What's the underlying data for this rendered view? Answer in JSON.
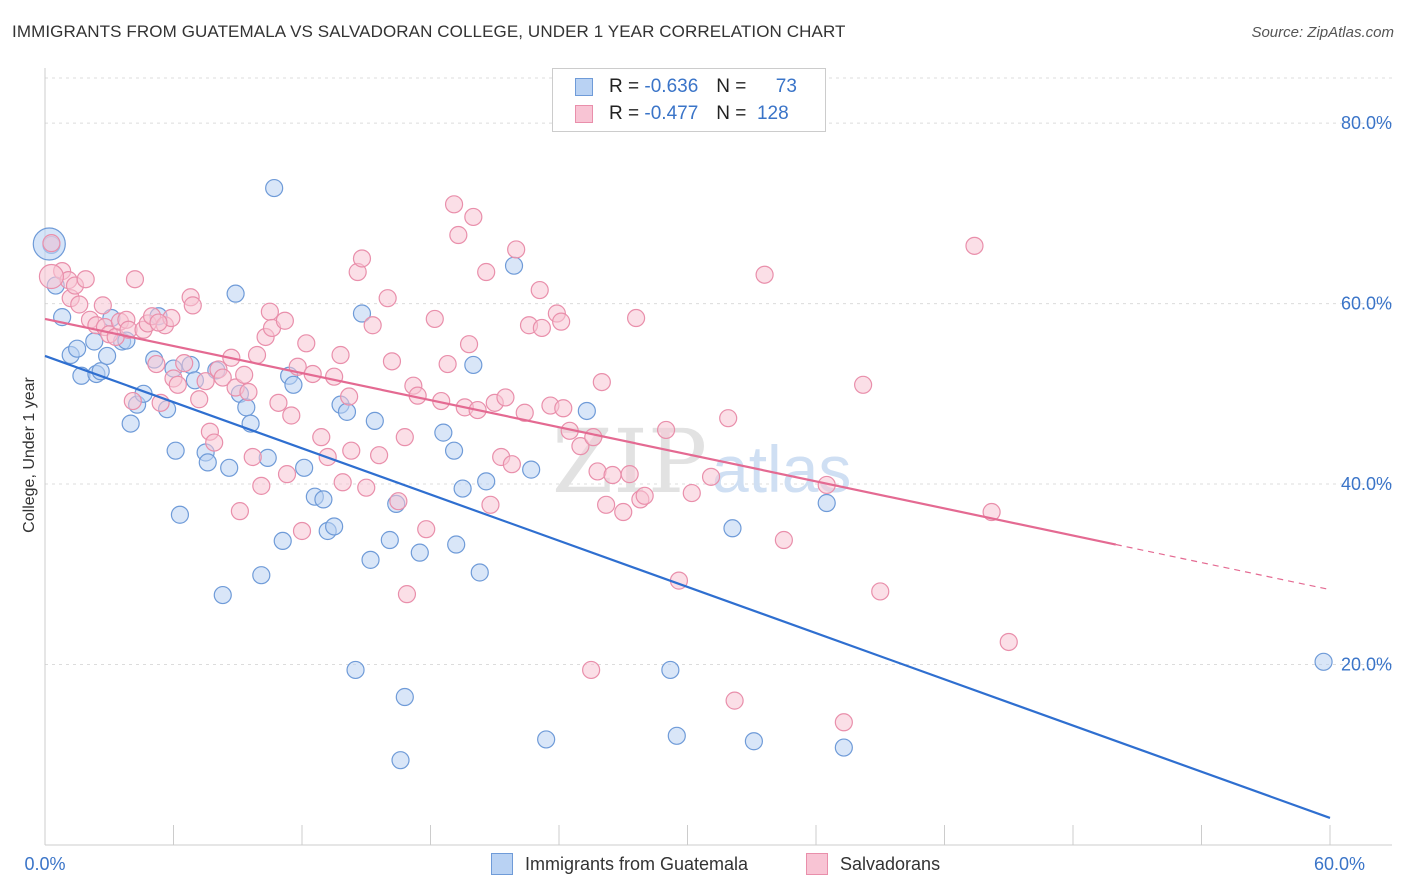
{
  "title": "IMMIGRANTS FROM GUATEMALA VS SALVADORAN COLLEGE, UNDER 1 YEAR CORRELATION CHART",
  "source": "Source: ZipAtlas.com",
  "watermark": {
    "zip": "ZIP",
    "atlas": "atlas"
  },
  "legend": {
    "r_label": "R =",
    "n_label": "N =",
    "rows": [
      {
        "r": "-0.636",
        "n": "73",
        "swatch_fill": "#b9d2f3",
        "swatch_stroke": "#6f9bd8"
      },
      {
        "r": "-0.477",
        "n": "128",
        "swatch_fill": "#f8c4d4",
        "swatch_stroke": "#e98fab"
      }
    ]
  },
  "bottom_legend": [
    {
      "label": "Immigrants from Guatemala",
      "fill": "#b9d2f3",
      "stroke": "#6f9bd8"
    },
    {
      "label": "Salvadorans",
      "fill": "#f8c4d4",
      "stroke": "#e98fab"
    }
  ],
  "chart_data": {
    "type": "scatter",
    "title": "IMMIGRANTS FROM GUATEMALA VS SALVADORAN COLLEGE, UNDER 1 YEAR CORRELATION CHART",
    "xlabel": "",
    "ylabel": "College, Under 1 year",
    "xlim": [
      0,
      60
    ],
    "ylim": [
      0,
      85
    ],
    "x_tick_labels": [
      {
        "value": 0,
        "label": "0.0%"
      },
      {
        "value": 60,
        "label": "60.0%"
      }
    ],
    "x_minor_ticks": [
      0,
      6,
      12,
      18,
      24,
      30,
      36,
      42,
      48,
      54,
      60
    ],
    "y_ticks": [
      {
        "value": 20,
        "label": "20.0%"
      },
      {
        "value": 40,
        "label": "40.0%"
      },
      {
        "value": 60,
        "label": "60.0%"
      },
      {
        "value": 80,
        "label": "80.0%"
      }
    ],
    "grid": true,
    "grid_style": "dashed-horizontal",
    "legend_position": "top-center",
    "series": [
      {
        "name": "Immigrants from Guatemala",
        "color": "#6f9bd8",
        "fill": "#b9d2f3",
        "trend_color": "#2f6fd0",
        "trend": {
          "x": [
            0,
            60
          ],
          "y": [
            54.2,
            3.0
          ]
        },
        "points": [
          [
            0.3,
            66.5
          ],
          [
            0.5,
            62.0
          ],
          [
            0.8,
            58.5
          ],
          [
            1.2,
            54.3
          ],
          [
            1.5,
            55.0
          ],
          [
            1.7,
            52.0
          ],
          [
            2.3,
            55.8
          ],
          [
            2.4,
            52.2
          ],
          [
            2.6,
            52.5
          ],
          [
            2.9,
            54.2
          ],
          [
            3.1,
            58.4
          ],
          [
            3.6,
            55.8
          ],
          [
            3.8,
            55.9
          ],
          [
            4.0,
            46.7
          ],
          [
            4.3,
            48.8
          ],
          [
            4.6,
            50.0
          ],
          [
            5.1,
            53.8
          ],
          [
            5.3,
            58.6
          ],
          [
            5.7,
            48.3
          ],
          [
            6.0,
            52.8
          ],
          [
            6.1,
            43.7
          ],
          [
            6.3,
            36.6
          ],
          [
            6.8,
            53.2
          ],
          [
            7.0,
            51.5
          ],
          [
            7.5,
            43.5
          ],
          [
            7.6,
            42.4
          ],
          [
            8.0,
            52.6
          ],
          [
            8.3,
            27.7
          ],
          [
            8.6,
            41.8
          ],
          [
            8.9,
            61.1
          ],
          [
            9.1,
            50.0
          ],
          [
            9.4,
            48.5
          ],
          [
            9.6,
            46.7
          ],
          [
            10.1,
            29.9
          ],
          [
            10.4,
            42.9
          ],
          [
            10.7,
            72.8
          ],
          [
            11.1,
            33.7
          ],
          [
            11.4,
            52.0
          ],
          [
            11.6,
            51.0
          ],
          [
            12.1,
            41.8
          ],
          [
            12.6,
            38.6
          ],
          [
            13.0,
            38.3
          ],
          [
            13.2,
            34.8
          ],
          [
            13.5,
            35.3
          ],
          [
            13.8,
            48.8
          ],
          [
            14.1,
            48.0
          ],
          [
            14.5,
            19.4
          ],
          [
            14.8,
            58.9
          ],
          [
            15.2,
            31.6
          ],
          [
            15.4,
            47.0
          ],
          [
            16.1,
            33.8
          ],
          [
            16.4,
            37.8
          ],
          [
            16.8,
            16.4
          ],
          [
            16.6,
            9.4
          ],
          [
            17.5,
            32.4
          ],
          [
            18.6,
            45.7
          ],
          [
            19.1,
            43.7
          ],
          [
            19.2,
            33.3
          ],
          [
            19.5,
            39.5
          ],
          [
            20.0,
            53.2
          ],
          [
            20.3,
            30.2
          ],
          [
            20.6,
            40.3
          ],
          [
            21.9,
            64.2
          ],
          [
            22.7,
            41.6
          ],
          [
            23.4,
            11.7
          ],
          [
            25.3,
            48.1
          ],
          [
            29.2,
            19.4
          ],
          [
            29.5,
            12.1
          ],
          [
            32.1,
            35.1
          ],
          [
            33.1,
            11.5
          ],
          [
            36.5,
            37.9
          ],
          [
            37.3,
            10.8
          ],
          [
            59.7,
            20.3
          ]
        ],
        "big_point": [
          0.2,
          66.6
        ]
      },
      {
        "name": "Salvadorans",
        "color": "#e98fab",
        "fill": "#f8c4d4",
        "trend_color": "#e46a92",
        "trend": {
          "x": [
            0,
            50
          ],
          "y": [
            58.3,
            33.3
          ]
        },
        "trend_dashed": {
          "x": [
            50,
            60
          ],
          "y": [
            33.3,
            28.3
          ]
        },
        "points": [
          [
            0.3,
            66.7
          ],
          [
            0.8,
            63.6
          ],
          [
            1.1,
            62.6
          ],
          [
            1.2,
            60.6
          ],
          [
            1.4,
            62.0
          ],
          [
            1.6,
            59.9
          ],
          [
            1.9,
            62.7
          ],
          [
            2.1,
            58.2
          ],
          [
            2.4,
            57.6
          ],
          [
            2.7,
            59.8
          ],
          [
            2.8,
            57.4
          ],
          [
            3.0,
            56.6
          ],
          [
            3.3,
            56.3
          ],
          [
            3.5,
            58.0
          ],
          [
            3.8,
            58.2
          ],
          [
            3.9,
            57.1
          ],
          [
            4.1,
            49.2
          ],
          [
            4.2,
            62.7
          ],
          [
            4.6,
            57.1
          ],
          [
            4.8,
            57.8
          ],
          [
            5.0,
            58.6
          ],
          [
            5.2,
            53.3
          ],
          [
            5.4,
            49.0
          ],
          [
            5.6,
            57.6
          ],
          [
            5.9,
            58.4
          ],
          [
            6.0,
            51.7
          ],
          [
            6.2,
            51.0
          ],
          [
            6.5,
            53.4
          ],
          [
            6.8,
            60.7
          ],
          [
            6.9,
            59.8
          ],
          [
            7.2,
            49.4
          ],
          [
            7.5,
            51.4
          ],
          [
            7.7,
            45.8
          ],
          [
            7.9,
            44.6
          ],
          [
            8.1,
            52.7
          ],
          [
            8.3,
            51.8
          ],
          [
            8.7,
            54.0
          ],
          [
            8.9,
            50.7
          ],
          [
            9.1,
            37.0
          ],
          [
            9.3,
            52.1
          ],
          [
            9.5,
            50.2
          ],
          [
            9.7,
            43.0
          ],
          [
            9.9,
            54.3
          ],
          [
            10.1,
            39.8
          ],
          [
            10.3,
            56.3
          ],
          [
            10.5,
            59.1
          ],
          [
            10.6,
            57.3
          ],
          [
            10.9,
            49.0
          ],
          [
            11.2,
            58.1
          ],
          [
            11.3,
            41.1
          ],
          [
            11.5,
            47.6
          ],
          [
            11.8,
            53.0
          ],
          [
            12.0,
            34.8
          ],
          [
            12.2,
            55.6
          ],
          [
            12.5,
            52.2
          ],
          [
            12.9,
            45.2
          ],
          [
            13.2,
            43.0
          ],
          [
            13.5,
            51.9
          ],
          [
            13.8,
            54.3
          ],
          [
            13.9,
            40.2
          ],
          [
            14.2,
            49.7
          ],
          [
            14.3,
            43.7
          ],
          [
            14.6,
            63.5
          ],
          [
            14.8,
            65.0
          ],
          [
            15.0,
            39.6
          ],
          [
            15.3,
            57.6
          ],
          [
            15.6,
            43.2
          ],
          [
            16.0,
            60.6
          ],
          [
            16.2,
            53.6
          ],
          [
            16.5,
            38.1
          ],
          [
            16.8,
            45.2
          ],
          [
            16.9,
            27.8
          ],
          [
            17.2,
            50.9
          ],
          [
            17.4,
            49.8
          ],
          [
            17.8,
            35.0
          ],
          [
            18.2,
            58.3
          ],
          [
            18.5,
            49.2
          ],
          [
            18.8,
            53.3
          ],
          [
            19.1,
            71.0
          ],
          [
            19.3,
            67.6
          ],
          [
            19.6,
            48.5
          ],
          [
            19.8,
            55.5
          ],
          [
            20.0,
            69.6
          ],
          [
            20.2,
            48.2
          ],
          [
            20.6,
            63.5
          ],
          [
            20.8,
            37.7
          ],
          [
            21.0,
            49.0
          ],
          [
            21.3,
            43.0
          ],
          [
            21.5,
            49.6
          ],
          [
            21.8,
            42.2
          ],
          [
            22.0,
            66.0
          ],
          [
            22.4,
            47.9
          ],
          [
            22.6,
            57.6
          ],
          [
            23.1,
            61.5
          ],
          [
            23.2,
            57.3
          ],
          [
            23.6,
            48.7
          ],
          [
            23.9,
            58.9
          ],
          [
            24.1,
            58.0
          ],
          [
            24.2,
            48.4
          ],
          [
            24.5,
            45.9
          ],
          [
            25.0,
            44.2
          ],
          [
            25.5,
            19.4
          ],
          [
            25.6,
            45.2
          ],
          [
            25.8,
            41.4
          ],
          [
            26.0,
            51.3
          ],
          [
            26.2,
            37.7
          ],
          [
            26.5,
            41.0
          ],
          [
            27.0,
            36.9
          ],
          [
            27.3,
            41.1
          ],
          [
            27.6,
            58.4
          ],
          [
            27.8,
            38.3
          ],
          [
            28.0,
            38.7
          ],
          [
            29.0,
            46.0
          ],
          [
            29.6,
            29.3
          ],
          [
            30.2,
            39.0
          ],
          [
            31.1,
            40.8
          ],
          [
            31.9,
            47.3
          ],
          [
            32.2,
            16.0
          ],
          [
            33.6,
            63.2
          ],
          [
            34.5,
            33.8
          ],
          [
            36.5,
            39.9
          ],
          [
            37.3,
            13.6
          ],
          [
            38.2,
            51.0
          ],
          [
            39.0,
            28.1
          ],
          [
            43.4,
            66.4
          ],
          [
            44.2,
            36.9
          ],
          [
            45.0,
            22.5
          ],
          [
            5.3,
            57.9
          ]
        ],
        "big_point": [
          0.3,
          63.0
        ]
      }
    ]
  }
}
